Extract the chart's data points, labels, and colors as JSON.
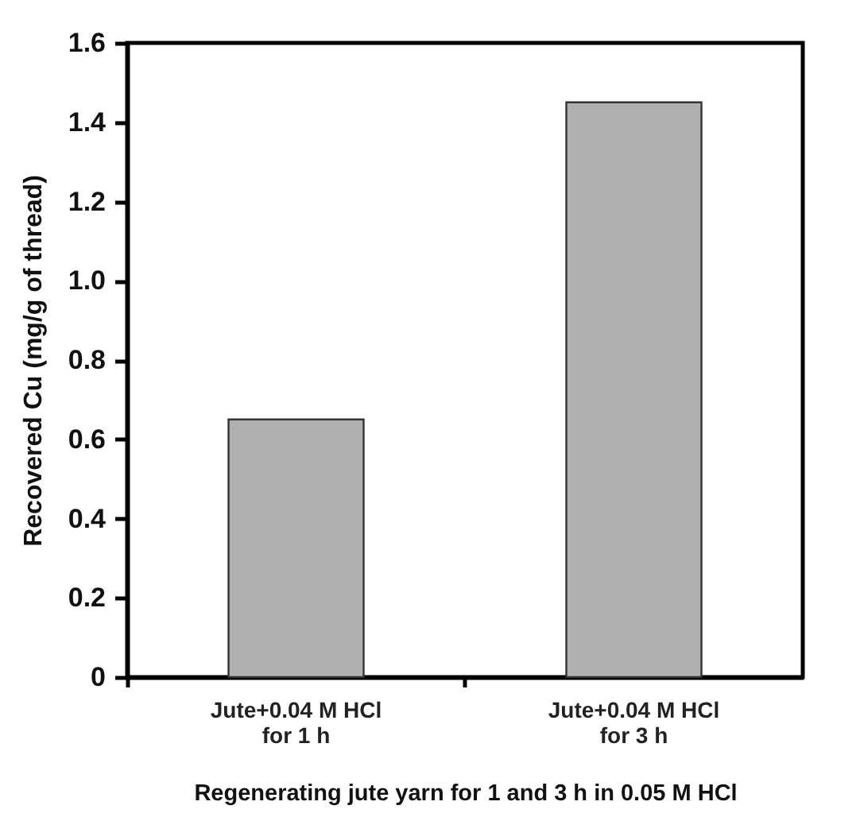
{
  "chart_data": {
    "type": "bar",
    "xlabel": "Regenerating jute yarn for 1 and 3 h in 0.05 M HCl",
    "ylabel": "Recovered Cu (mg/g of thread)",
    "categories": [
      "Jute+0.04 M HCl\nfor 1 h",
      "Jute+0.04 M HCl\nfor 3 h"
    ],
    "values": [
      0.65,
      1.45
    ],
    "color": "#b0b0b0",
    "ylim": [
      0,
      1.6
    ],
    "yticks": [
      0,
      {
        "value": 0.2,
        "label": "0.2"
      },
      {
        "value": 0.4,
        "label": "0.4"
      },
      {
        "value": 0.6,
        "label": "0.6"
      },
      {
        "value": 0.8,
        "label": "0.8"
      },
      {
        "value": 1.0,
        "label": "1.0"
      },
      {
        "value": 1.2,
        "label": "1.2"
      },
      {
        "value": 1.4,
        "label": "1.4"
      },
      {
        "value": 1.6,
        "label": "1.6"
      }
    ],
    "grid": false
  }
}
